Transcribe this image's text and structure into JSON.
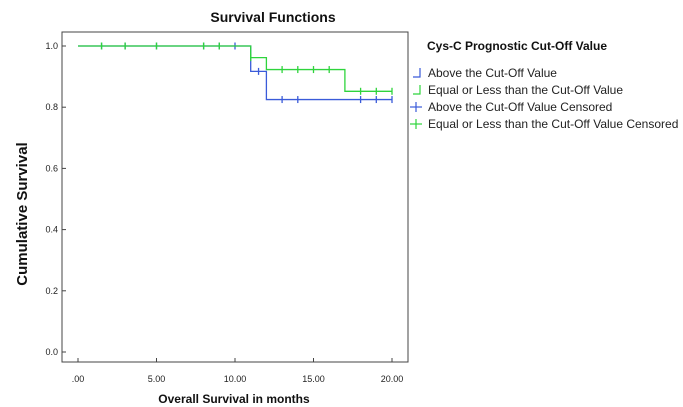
{
  "chart_data": {
    "type": "line",
    "title": "Survival Functions",
    "xlabel": "Overall Survival in months",
    "ylabel": "Cumulative Survival",
    "xlim": [
      0,
      20
    ],
    "ylim": [
      0,
      1
    ],
    "x_ticks": [
      {
        "value": 0,
        "label": ".00"
      },
      {
        "value": 5,
        "label": "5.00"
      },
      {
        "value": 10,
        "label": "10.00"
      },
      {
        "value": 15,
        "label": "15.00"
      },
      {
        "value": 20,
        "label": "20.00"
      }
    ],
    "y_ticks": [
      {
        "value": 0,
        "label": "0.0"
      },
      {
        "value": 0.2,
        "label": "0.2"
      },
      {
        "value": 0.4,
        "label": "0.4"
      },
      {
        "value": 0.6,
        "label": "0.6"
      },
      {
        "value": 0.8,
        "label": "0.8"
      },
      {
        "value": 1.0,
        "label": "1.0"
      }
    ],
    "grid": false,
    "legend_title": "Cys-C Prognostic Cut-Off Value",
    "legend_position": "right",
    "series": [
      {
        "name": "Above the Cut-Off Value",
        "color": "#3a5bd9",
        "censored_name": "Above the Cut-Off Value Censored",
        "steps": [
          {
            "x": 0,
            "y": 1.0
          },
          {
            "x": 11,
            "y": 0.917
          },
          {
            "x": 12,
            "y": 0.825
          },
          {
            "x": 20,
            "y": 0.825
          }
        ],
        "censored": [
          {
            "x": 1.5,
            "y": 1.0
          },
          {
            "x": 3,
            "y": 1.0
          },
          {
            "x": 5,
            "y": 1.0
          },
          {
            "x": 8,
            "y": 1.0
          },
          {
            "x": 9,
            "y": 1.0
          },
          {
            "x": 10,
            "y": 1.0
          },
          {
            "x": 11.5,
            "y": 0.917
          },
          {
            "x": 13,
            "y": 0.825
          },
          {
            "x": 14,
            "y": 0.825
          },
          {
            "x": 18,
            "y": 0.825
          },
          {
            "x": 19,
            "y": 0.825
          },
          {
            "x": 20,
            "y": 0.825
          }
        ]
      },
      {
        "name": "Equal or Less than the Cut-Off Value",
        "color": "#2fd43c",
        "censored_name": "Equal or Less than the Cut-Off Value Censored",
        "steps": [
          {
            "x": 0,
            "y": 1.0
          },
          {
            "x": 11,
            "y": 0.962
          },
          {
            "x": 12,
            "y": 0.923
          },
          {
            "x": 17,
            "y": 0.852
          },
          {
            "x": 20,
            "y": 0.852
          }
        ],
        "censored": [
          {
            "x": 1.5,
            "y": 1.0
          },
          {
            "x": 3,
            "y": 1.0
          },
          {
            "x": 5,
            "y": 1.0
          },
          {
            "x": 8,
            "y": 1.0
          },
          {
            "x": 9,
            "y": 1.0
          },
          {
            "x": 11,
            "y": 0.962
          },
          {
            "x": 13,
            "y": 0.923
          },
          {
            "x": 14,
            "y": 0.923
          },
          {
            "x": 15,
            "y": 0.923
          },
          {
            "x": 16,
            "y": 0.923
          },
          {
            "x": 18,
            "y": 0.852
          },
          {
            "x": 19,
            "y": 0.852
          },
          {
            "x": 20,
            "y": 0.852
          }
        ]
      }
    ]
  }
}
